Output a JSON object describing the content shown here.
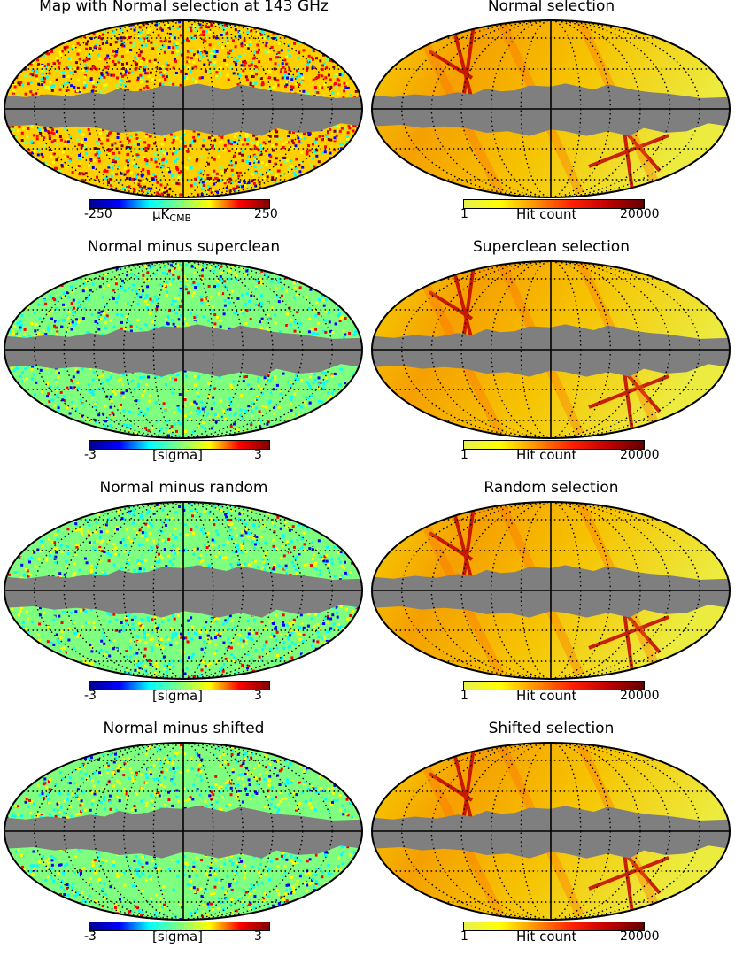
{
  "panels": [
    {
      "title": "Map with Normal selection at 143 GHz",
      "kind": "cmb",
      "cbar": {
        "min": "-250",
        "max": "250",
        "unit": "μK",
        "unit_sub": "CMB"
      }
    },
    {
      "title": "Normal selection",
      "kind": "hits",
      "cbar": {
        "min": "1",
        "max": "20000",
        "unit": "Hit count",
        "unit_sub": ""
      }
    },
    {
      "title": "Normal minus superclean",
      "kind": "diff",
      "cbar": {
        "min": "-3",
        "max": "3",
        "unit": "[sigma]",
        "unit_sub": ""
      }
    },
    {
      "title": "Superclean selection",
      "kind": "hits",
      "cbar": {
        "min": "1",
        "max": "20000",
        "unit": "Hit count",
        "unit_sub": ""
      }
    },
    {
      "title": "Normal minus random",
      "kind": "diff",
      "cbar": {
        "min": "-3",
        "max": "3",
        "unit": "[sigma]",
        "unit_sub": ""
      }
    },
    {
      "title": "Random selection",
      "kind": "hits",
      "cbar": {
        "min": "1",
        "max": "20000",
        "unit": "Hit count",
        "unit_sub": ""
      }
    },
    {
      "title": "Normal minus shifted",
      "kind": "diff",
      "cbar": {
        "min": "-3",
        "max": "3",
        "unit": "[sigma]",
        "unit_sub": ""
      }
    },
    {
      "title": "Shifted selection",
      "kind": "hits",
      "cbar": {
        "min": "1",
        "max": "20000",
        "unit": "Hit count",
        "unit_sub": ""
      }
    }
  ],
  "colors": {
    "mask": "#7f7f7f",
    "jet_scale": [
      "#00008f",
      "#0000ff",
      "#00ffff",
      "#7fff7f",
      "#ffff00",
      "#ff0000",
      "#7f0000"
    ],
    "hits_scale": [
      "#e8f050",
      "#ffff00",
      "#ff9000",
      "#ff2000",
      "#c00000",
      "#600000"
    ]
  }
}
